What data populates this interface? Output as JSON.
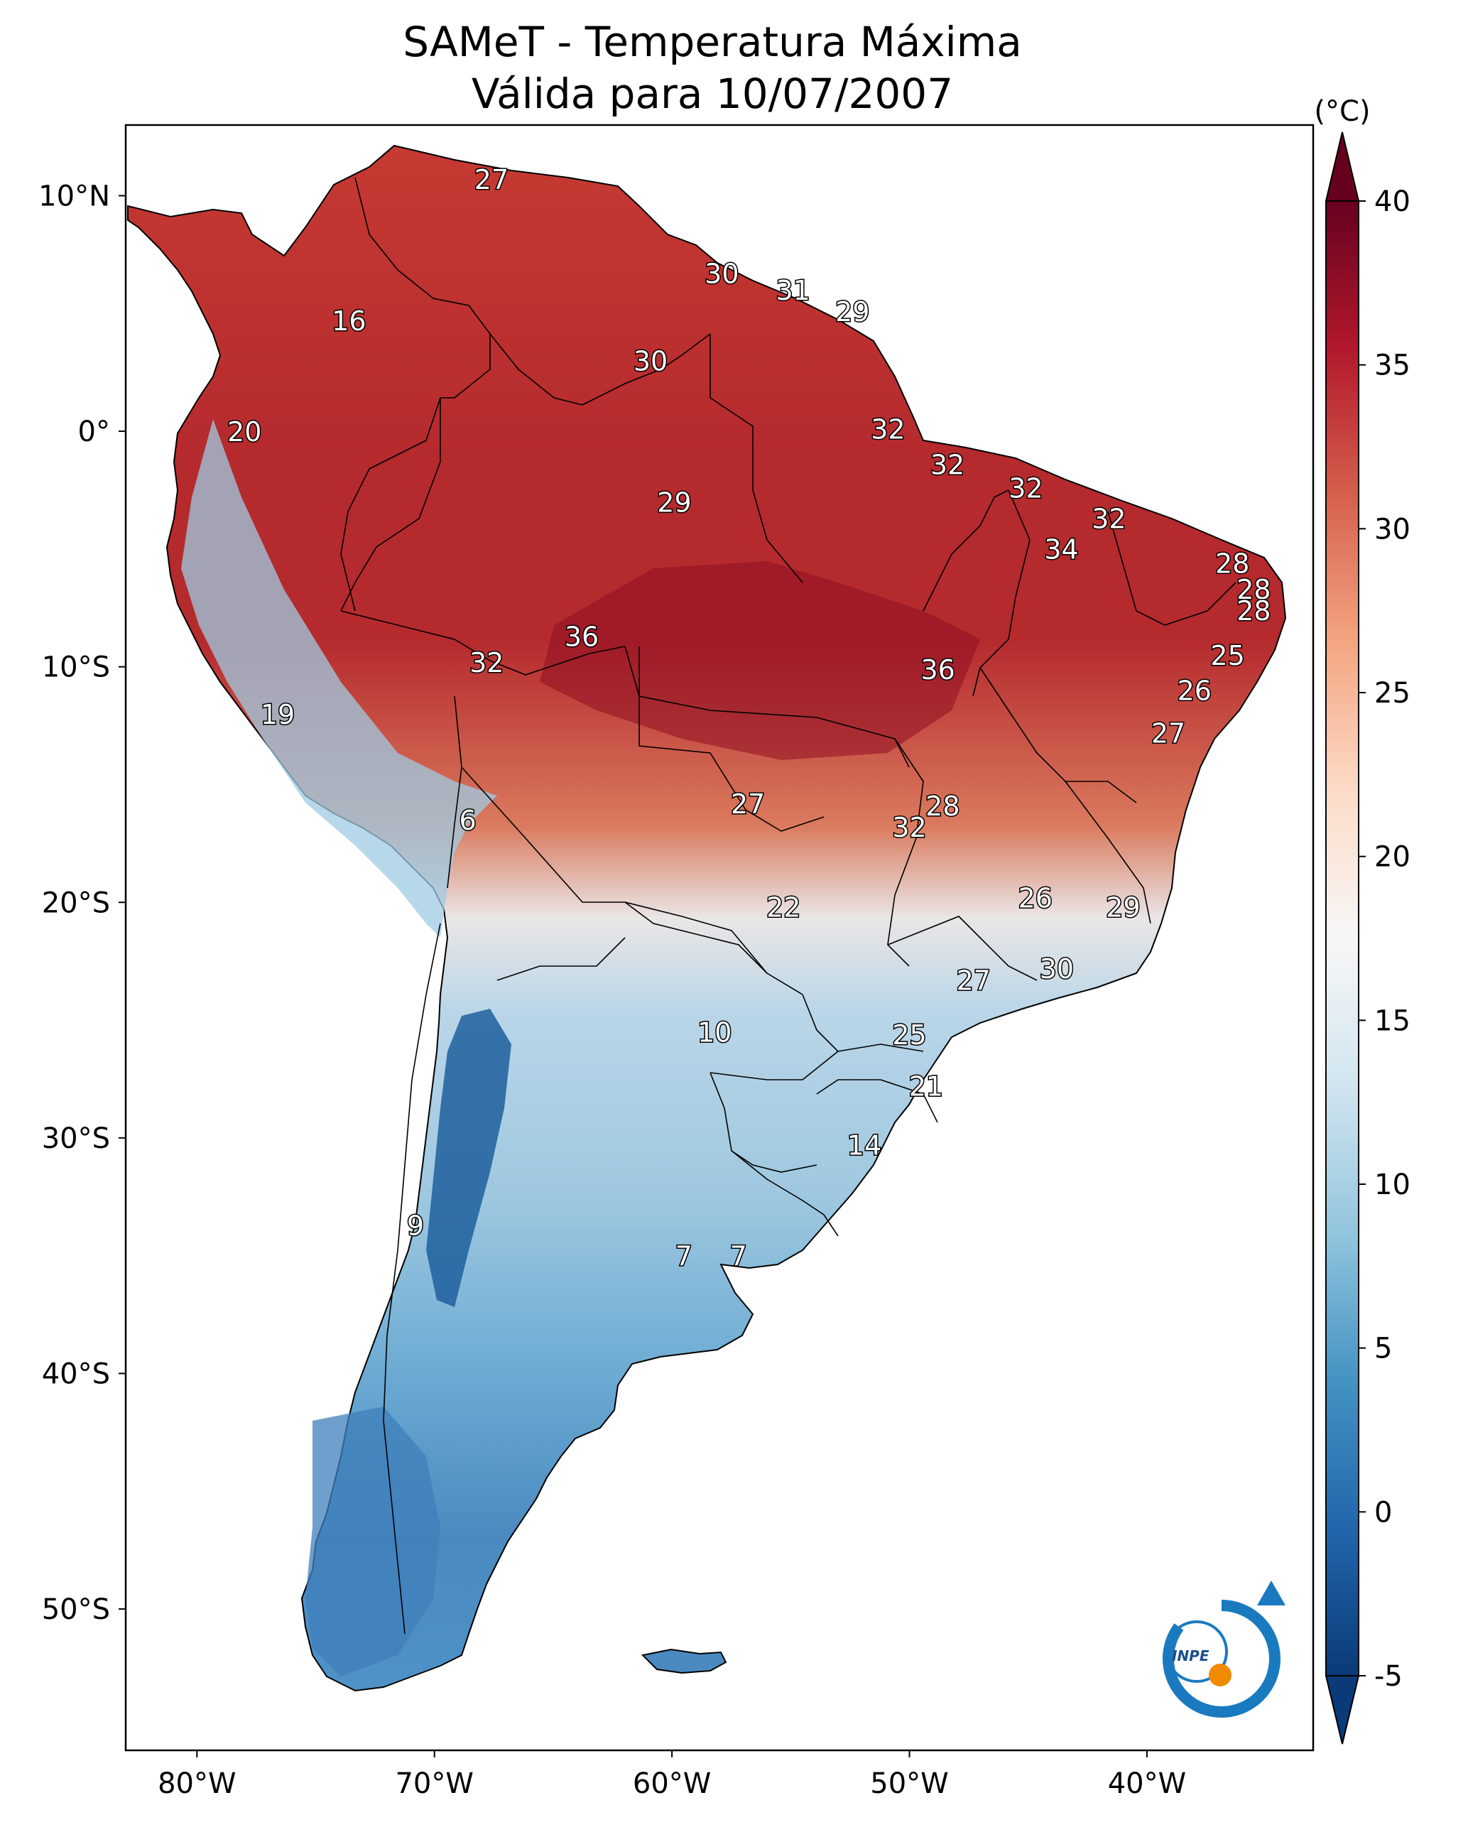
{
  "title_line1": "SAMeT - Temperatura Máxima",
  "title_line2": "Válida para 10/07/2007",
  "colorbar": {
    "unit": "(°C)",
    "ticks": [
      "40",
      "35",
      "30",
      "25",
      "20",
      "15",
      "10",
      "5",
      "0",
      "-5"
    ],
    "range": [
      -5,
      40
    ],
    "extend": "both",
    "colormap": "RdBu_r",
    "colors": [
      "#0b3a78",
      "#2166ac",
      "#4393c3",
      "#92c5de",
      "#d1e5f0",
      "#f7f7f7",
      "#fddbc7",
      "#f4a582",
      "#d6604d",
      "#b2182b",
      "#67001f"
    ]
  },
  "axes": {
    "lat_labels": [
      "10°N",
      "0°",
      "10°S",
      "20°S",
      "30°S",
      "40°S",
      "50°S"
    ],
    "lon_labels": [
      "80°W",
      "70°W",
      "60°W",
      "50°W",
      "40°W"
    ],
    "lon_range": [
      -83,
      -33
    ],
    "lat_range": [
      -56,
      13
    ]
  },
  "logo_text": "INPE",
  "contour_labels": [
    {
      "text": "27",
      "lon": -67.6,
      "lat": 10.6
    },
    {
      "text": "30",
      "lon": -57.9,
      "lat": 6.6
    },
    {
      "text": "31",
      "lon": -54.9,
      "lat": 5.9
    },
    {
      "text": "29",
      "lon": -52.4,
      "lat": 5.0
    },
    {
      "text": "16",
      "lon": -73.6,
      "lat": 4.6
    },
    {
      "text": "30",
      "lon": -60.9,
      "lat": 2.9
    },
    {
      "text": "32",
      "lon": -50.9,
      "lat": 0.0
    },
    {
      "text": "20",
      "lon": -78.0,
      "lat": -0.1
    },
    {
      "text": "32",
      "lon": -48.4,
      "lat": -1.5
    },
    {
      "text": "32",
      "lon": -45.1,
      "lat": -2.5
    },
    {
      "text": "29",
      "lon": -59.9,
      "lat": -3.1
    },
    {
      "text": "32",
      "lon": -41.6,
      "lat": -3.8
    },
    {
      "text": "34",
      "lon": -43.6,
      "lat": -5.1
    },
    {
      "text": "28",
      "lon": -36.4,
      "lat": -5.7
    },
    {
      "text": "28",
      "lon": -35.5,
      "lat": -6.8
    },
    {
      "text": "28",
      "lon": -35.5,
      "lat": -7.7
    },
    {
      "text": "36",
      "lon": -63.8,
      "lat": -8.8
    },
    {
      "text": "25",
      "lon": -36.6,
      "lat": -9.6
    },
    {
      "text": "32",
      "lon": -67.8,
      "lat": -9.9
    },
    {
      "text": "36",
      "lon": -48.8,
      "lat": -10.2
    },
    {
      "text": "26",
      "lon": -38.0,
      "lat": -11.1
    },
    {
      "text": "19",
      "lon": -76.6,
      "lat": -12.1
    },
    {
      "text": "27",
      "lon": -39.1,
      "lat": -12.9
    },
    {
      "text": "27",
      "lon": -56.8,
      "lat": -15.9
    },
    {
      "text": "28",
      "lon": -48.6,
      "lat": -16.0
    },
    {
      "text": "32",
      "lon": -50.0,
      "lat": -16.9
    },
    {
      "text": "6",
      "lon": -68.6,
      "lat": -16.6
    },
    {
      "text": "26",
      "lon": -44.7,
      "lat": -19.9
    },
    {
      "text": "22",
      "lon": -55.3,
      "lat": -20.3
    },
    {
      "text": "29",
      "lon": -41.0,
      "lat": -20.3
    },
    {
      "text": "30",
      "lon": -43.8,
      "lat": -22.9
    },
    {
      "text": "27",
      "lon": -47.3,
      "lat": -23.4
    },
    {
      "text": "10",
      "lon": -58.2,
      "lat": -25.6
    },
    {
      "text": "25",
      "lon": -50.0,
      "lat": -25.7
    },
    {
      "text": "21",
      "lon": -49.3,
      "lat": -27.9
    },
    {
      "text": "14",
      "lon": -51.9,
      "lat": -30.4
    },
    {
      "text": "9",
      "lon": -70.8,
      "lat": -33.8
    },
    {
      "text": "7",
      "lon": -59.5,
      "lat": -35.1
    },
    {
      "text": "7",
      "lon": -57.2,
      "lat": -35.1
    }
  ]
}
